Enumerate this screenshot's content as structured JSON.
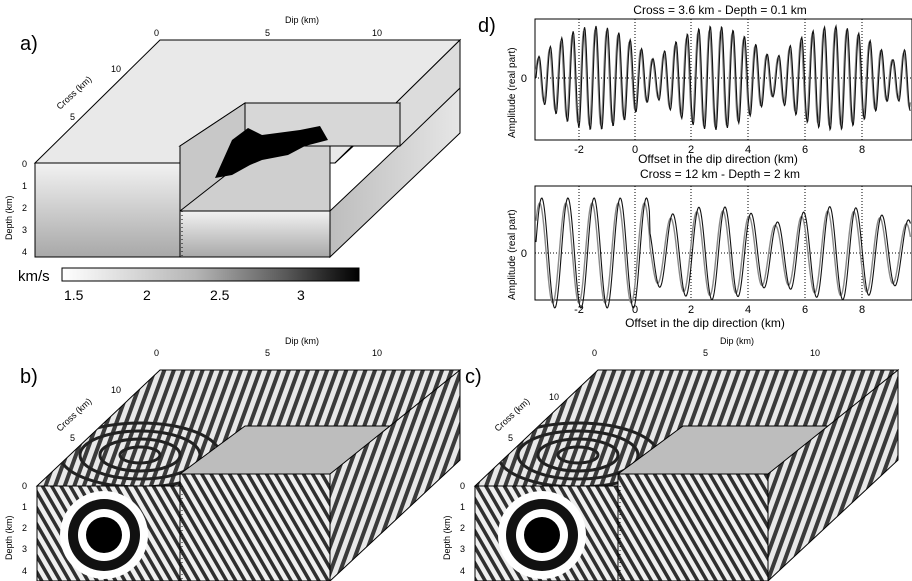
{
  "panel_labels": {
    "a": "a)",
    "b": "b)",
    "c": "c)",
    "d": "d)"
  },
  "panel_a": {
    "dip_label": "Dip (km)",
    "dip_ticks": [
      "0",
      "5",
      "10"
    ],
    "cross_label": "Cross (km)",
    "cross_ticks": [
      "10",
      "5",
      "0"
    ],
    "depth_label": "Depth (km)",
    "depth_ticks": [
      "0",
      "1",
      "2",
      "3",
      "4"
    ],
    "colorbar": {
      "unit": "km/s",
      "ticks": [
        "1.5",
        "2",
        "2.5",
        "3"
      ]
    }
  },
  "panel_b": {
    "dip_label": "Dip (km)",
    "dip_ticks": [
      "0",
      "5",
      "10"
    ],
    "cross_label": "Cross (km)",
    "cross_ticks": [
      "10",
      "5",
      "0"
    ],
    "depth_label": "Depth (km)",
    "depth_ticks": [
      "0",
      "1",
      "2",
      "3",
      "4"
    ]
  },
  "panel_c": {
    "dip_label": "Dip (km)",
    "dip_ticks": [
      "0",
      "5",
      "10"
    ],
    "cross_label": "Cross (km)",
    "cross_ticks": [
      "10",
      "5",
      "0"
    ],
    "depth_label": "Depth (km)",
    "depth_ticks": [
      "0",
      "1",
      "2",
      "3",
      "4"
    ]
  },
  "panel_d": {
    "top": {
      "title": "Cross = 3.6 km - Depth = 0.1 km",
      "xlabel": "Offset in the dip direction (km)",
      "ylabel": "Amplitude (real part)",
      "xticks": [
        "-2",
        "0",
        "2",
        "4",
        "6",
        "8"
      ],
      "ytick": "0"
    },
    "bottom": {
      "title": "Cross = 12 km - Depth = 2 km",
      "xlabel": "Offset in the dip direction (km)",
      "ylabel": "Amplitude (real part)",
      "xticks": [
        "-2",
        "0",
        "2",
        "4",
        "6",
        "8"
      ],
      "ytick": "0"
    },
    "series_colors": {
      "black": "#111111",
      "gray": "#8a8a8a"
    }
  }
}
